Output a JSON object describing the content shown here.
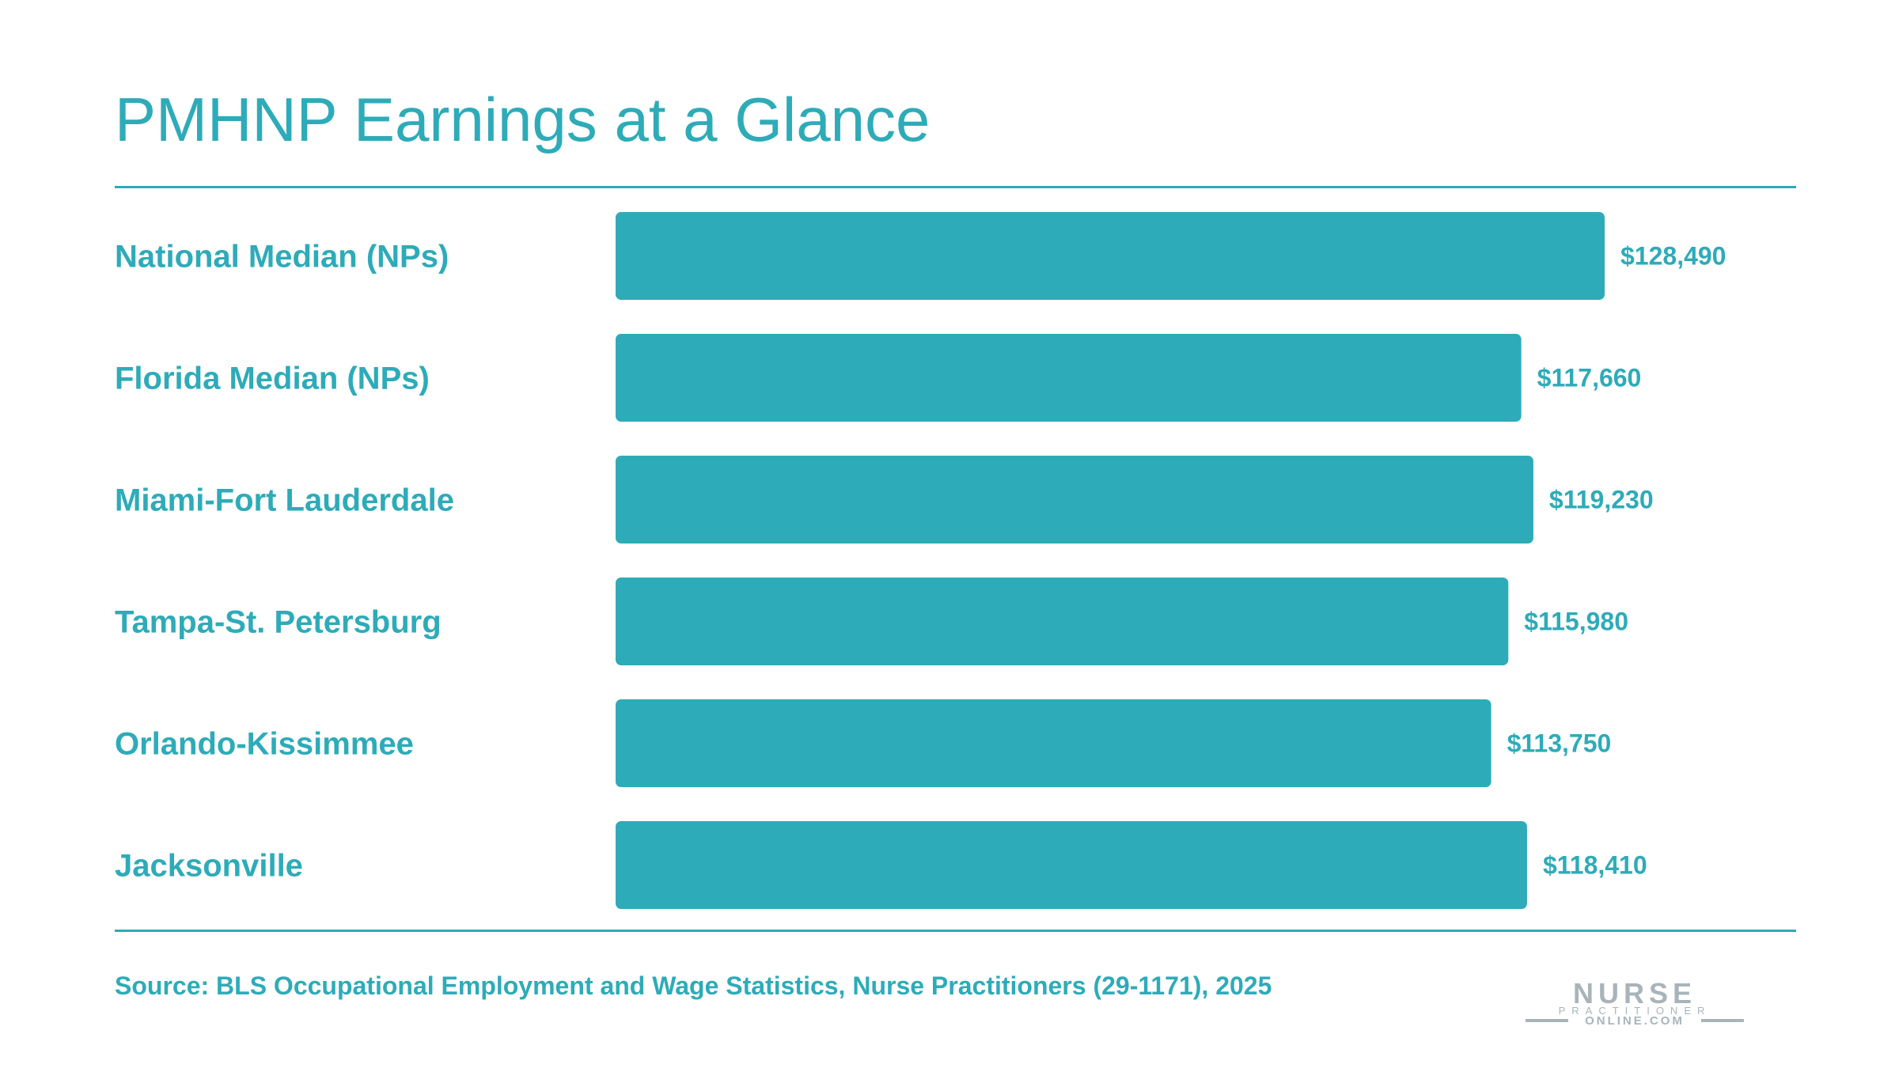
{
  "title": "PMHNP Earnings at a Glance",
  "source": "Source: BLS Occupational Employment and Wage Statistics, Nurse Practitioners (29-1171), 2025",
  "logo": {
    "line1": "NURSE",
    "line2": "PRACTITIONER",
    "line3": "ONLINE.COM"
  },
  "colors": {
    "accent": "#2eabb8",
    "logo": "#a9b4ba"
  },
  "chart_data": {
    "type": "bar",
    "orientation": "horizontal",
    "categories": [
      "National Median (NPs)",
      "Florida Median (NPs)",
      "Miami-Fort Lauderdale",
      "Tampa-St. Petersburg",
      "Orlando-Kissimmee",
      "Jacksonville"
    ],
    "values": [
      128490,
      117660,
      119230,
      115980,
      113750,
      118410
    ],
    "value_labels": [
      "$128,490",
      "$117,660",
      "$119,230",
      "$115,980",
      "$113,750",
      "$118,410"
    ],
    "xlim": [
      0,
      145000
    ],
    "grid": false,
    "legend": "none",
    "title": "PMHNP Earnings at a Glance",
    "xlabel": "",
    "ylabel": ""
  }
}
